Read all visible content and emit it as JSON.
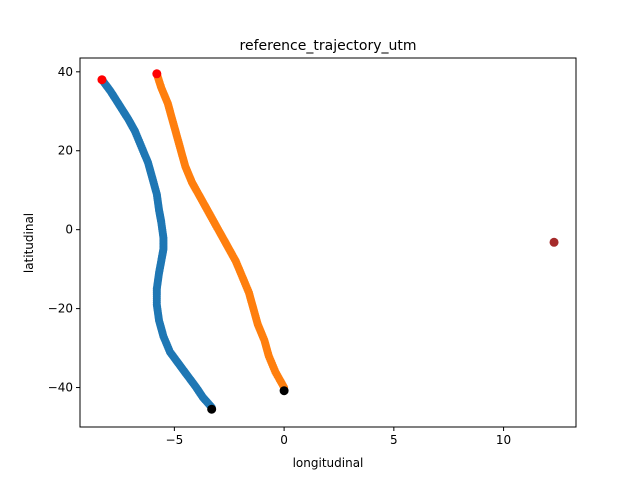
{
  "chart_data": {
    "type": "scatter",
    "title": "reference_trajectory_utm",
    "xlabel": "longitudinal",
    "ylabel": "latitudinal",
    "xlim": [
      -9.3,
      13.3
    ],
    "ylim": [
      -50.0,
      43.5
    ],
    "xticks": [
      -5,
      0,
      5,
      10
    ],
    "yticks": [
      -40,
      -20,
      0,
      20,
      40
    ],
    "xtick_labels": [
      "−5",
      "0",
      "5",
      "10"
    ],
    "ytick_labels": [
      "−40",
      "−20",
      "0",
      "20",
      "40"
    ],
    "grid": false,
    "series": [
      {
        "color": "#1f77b4",
        "points": [
          [
            -8.3,
            38.0
          ],
          [
            -7.9,
            35.0
          ],
          [
            -7.5,
            31.5
          ],
          [
            -7.1,
            28.0
          ],
          [
            -6.8,
            25.0
          ],
          [
            -6.5,
            21.0
          ],
          [
            -6.2,
            17.0
          ],
          [
            -6.0,
            13.0
          ],
          [
            -5.8,
            9.0
          ],
          [
            -5.7,
            5.0
          ],
          [
            -5.6,
            2.0
          ],
          [
            -5.5,
            -2.0
          ],
          [
            -5.5,
            -5.0
          ],
          [
            -5.6,
            -8.0
          ],
          [
            -5.7,
            -11.0
          ],
          [
            -5.8,
            -15.0
          ],
          [
            -5.8,
            -19.0
          ],
          [
            -5.7,
            -23.0
          ],
          [
            -5.5,
            -27.0
          ],
          [
            -5.2,
            -31.0
          ],
          [
            -4.8,
            -34.0
          ],
          [
            -4.4,
            -37.0
          ],
          [
            -4.0,
            -40.0
          ],
          [
            -3.7,
            -42.5
          ],
          [
            -3.3,
            -45.0
          ]
        ]
      },
      {
        "color": "#ff7f0e",
        "points": [
          [
            -5.8,
            39.5
          ],
          [
            -5.6,
            36.0
          ],
          [
            -5.3,
            32.0
          ],
          [
            -5.1,
            28.0
          ],
          [
            -4.9,
            24.0
          ],
          [
            -4.7,
            20.0
          ],
          [
            -4.5,
            16.0
          ],
          [
            -4.2,
            12.0
          ],
          [
            -3.8,
            8.0
          ],
          [
            -3.4,
            4.0
          ],
          [
            -3.0,
            0.0
          ],
          [
            -2.6,
            -4.0
          ],
          [
            -2.2,
            -8.0
          ],
          [
            -1.9,
            -12.0
          ],
          [
            -1.6,
            -16.0
          ],
          [
            -1.4,
            -20.0
          ],
          [
            -1.2,
            -24.0
          ],
          [
            -0.9,
            -28.0
          ],
          [
            -0.7,
            -32.0
          ],
          [
            -0.4,
            -36.0
          ],
          [
            0.0,
            -40.0
          ]
        ]
      }
    ],
    "markers": [
      {
        "name": "start-blue",
        "x": -8.3,
        "y": 38.0,
        "color": "#ff0000"
      },
      {
        "name": "start-orange",
        "x": -5.8,
        "y": 39.5,
        "color": "#ff0000"
      },
      {
        "name": "end-blue",
        "x": -3.3,
        "y": -45.5,
        "color": "#000000"
      },
      {
        "name": "end-orange",
        "x": 0.0,
        "y": -40.8,
        "color": "#000000"
      },
      {
        "name": "outlier-point",
        "x": 12.3,
        "y": -3.2,
        "color": "#a52a2a"
      }
    ]
  }
}
